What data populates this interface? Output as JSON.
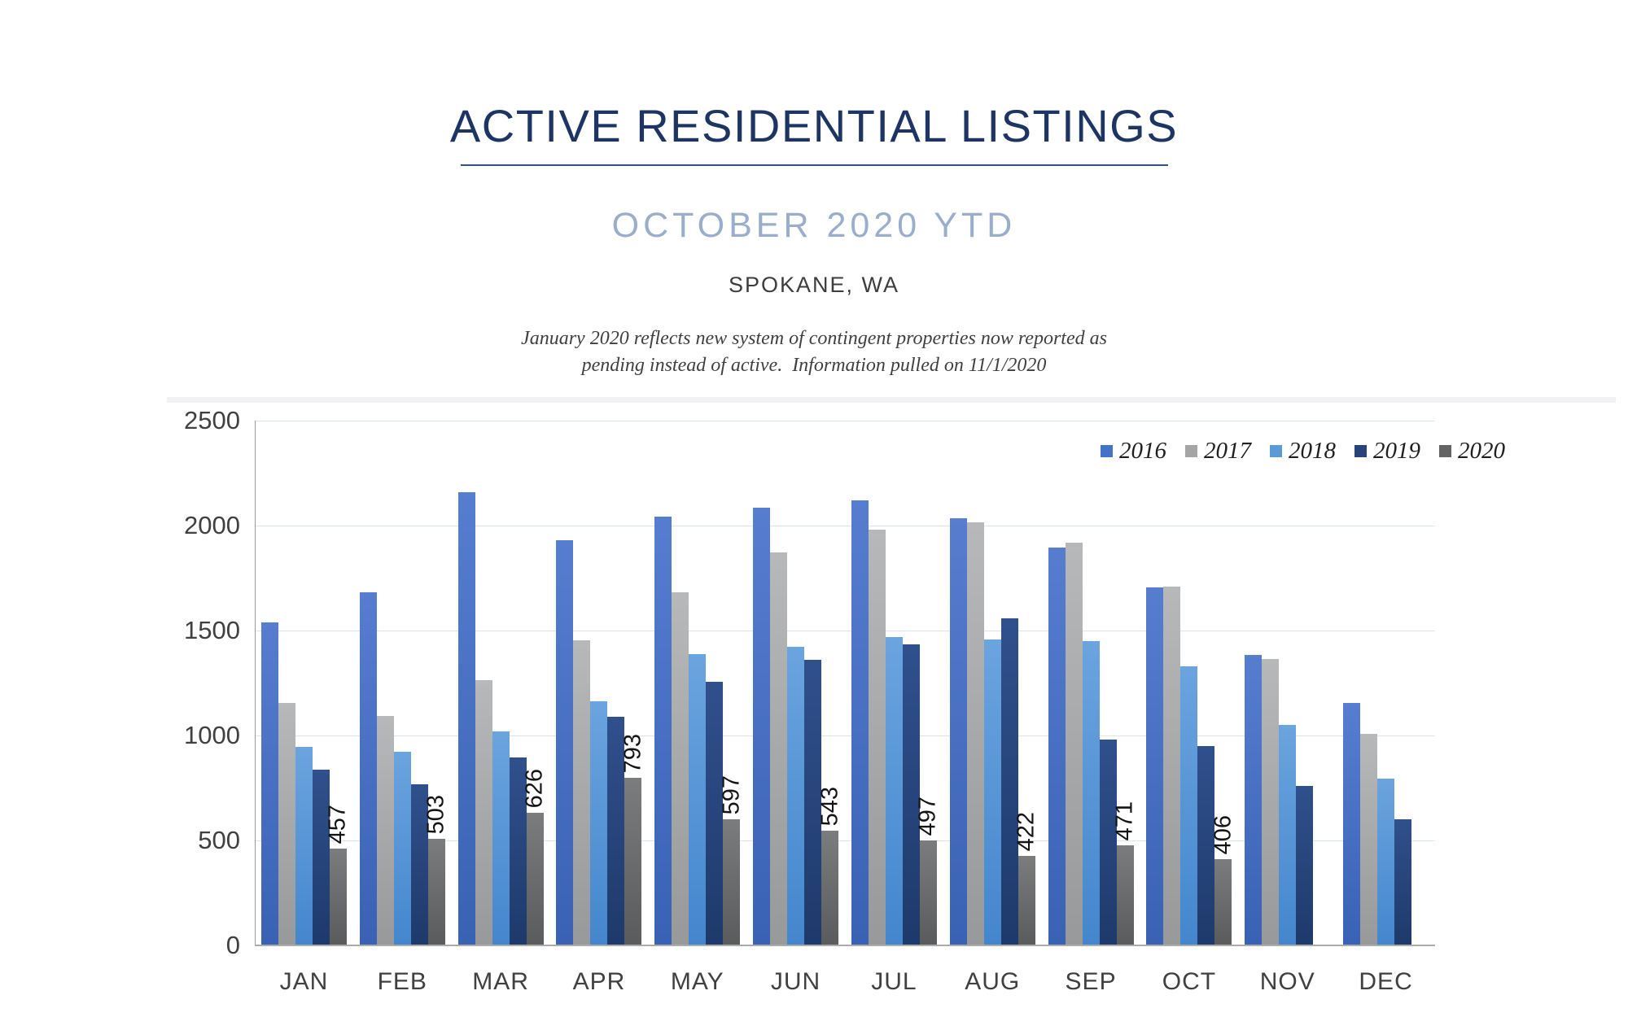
{
  "header": {
    "title": "ACTIVE RESIDENTIAL LISTINGS",
    "subtitle": "OCTOBER 2020 YTD",
    "location": "SPOKANE, WA",
    "note_line1": "January 2020 reflects new system of contingent properties now reported as",
    "note_line2": "pending instead of active.  Information pulled on 11/1/2020"
  },
  "chart_data": {
    "type": "bar",
    "title": "Active Residential Listings, October 2020 YTD, Spokane WA",
    "categories": [
      "JAN",
      "FEB",
      "MAR",
      "APR",
      "MAY",
      "JUN",
      "JUL",
      "AUG",
      "SEP",
      "OCT",
      "NOV",
      "DEC"
    ],
    "series": [
      {
        "name": "2016",
        "color": "#4472C4",
        "gradient_top": "#567dcf",
        "gradient_bottom": "#3a62b4",
        "values": [
          1535,
          1680,
          2155,
          1925,
          2040,
          2080,
          2115,
          2030,
          1890,
          1700,
          1380,
          1150
        ]
      },
      {
        "name": "2017",
        "color": "#A5A5A5",
        "gradient_top": "#b7b8ba",
        "gradient_bottom": "#98999b",
        "values": [
          1150,
          1090,
          1260,
          1450,
          1680,
          1870,
          1975,
          2010,
          1915,
          1705,
          1360,
          1005
        ]
      },
      {
        "name": "2018",
        "color": "#5B9BD5",
        "gradient_top": "#6ba4df",
        "gradient_bottom": "#4486cd",
        "values": [
          940,
          920,
          1015,
          1160,
          1385,
          1420,
          1465,
          1455,
          1445,
          1325,
          1045,
          790
        ]
      },
      {
        "name": "2019",
        "color": "#264478",
        "gradient_top": "#30508d",
        "gradient_bottom": "#1e3a6b",
        "values": [
          835,
          765,
          890,
          1085,
          1250,
          1355,
          1430,
          1555,
          975,
          945,
          755,
          595
        ]
      },
      {
        "name": "2020",
        "color": "#636363",
        "gradient_top": "#7b7c7e",
        "gradient_bottom": "#5a5b5d",
        "values": [
          457,
          503,
          626,
          793,
          597,
          543,
          497,
          422,
          471,
          406,
          null,
          null
        ],
        "data_labels": [
          "457",
          "503",
          "626",
          "793",
          "597",
          "543",
          "497",
          "422",
          "471",
          "406",
          null,
          null
        ]
      }
    ],
    "ylim": [
      0,
      2500
    ],
    "yticks": [
      0,
      500,
      1000,
      1500,
      2000,
      2500
    ],
    "xlabel": "",
    "ylabel": "",
    "grid": true,
    "legend_position": "top-right"
  },
  "style_colors": {
    "title_navy": "#1e3563",
    "subtitle_blue_gray": "#9aadca",
    "gridline": "#dde2ef",
    "axis_gray": "#ababab",
    "tick_text": "#404040"
  }
}
